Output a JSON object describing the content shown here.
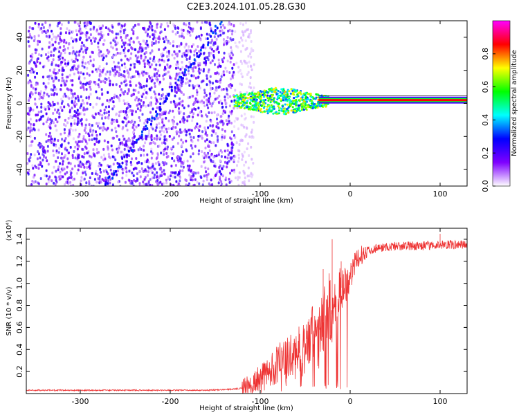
{
  "title": "C2E3.2024.101.05.28.G30",
  "chart_data": [
    {
      "type": "heatmap",
      "xlabel": "Height of straight line (km)",
      "ylabel": "Frequency (Hz)",
      "xlim": [
        -360,
        130
      ],
      "ylim": [
        -50,
        50
      ],
      "xticks": [
        "-300",
        "-200",
        "-100",
        "0",
        "100"
      ],
      "xtick_values": [
        -300,
        -200,
        -100,
        0,
        100
      ],
      "yticks": [
        "-40",
        "-20",
        "0",
        "20",
        "40"
      ],
      "ytick_values": [
        -40,
        -20,
        0,
        20,
        40
      ],
      "colorbar": {
        "label": "Normalized spectral amplitude",
        "range": [
          0,
          1
        ],
        "ticks": [
          "0.0",
          "0.2",
          "0.4",
          "0.6",
          "0.8"
        ],
        "tick_values": [
          0.0,
          0.2,
          0.4,
          0.6,
          0.8
        ],
        "colormap": "rainbow",
        "stops": [
          "#ffffff",
          "#7f00ff",
          "#0000ff",
          "#00ffff",
          "#00ff00",
          "#ffff00",
          "#ff0000",
          "#ff00ff"
        ]
      },
      "features": {
        "noise_region_x": [
          -360,
          -130
        ],
        "sparse_noise_x": [
          -130,
          -108
        ],
        "diagonal_feature": {
          "from": [
            -275,
            -50
          ],
          "to": [
            -145,
            50
          ]
        },
        "signal_line_frequency_hz": 2,
        "broadband_signal_x": [
          -130,
          -25
        ],
        "strong_line_x": [
          -35,
          130
        ]
      },
      "grid": false
    },
    {
      "type": "line",
      "xlabel": "Height of straight line (km)",
      "ylabel": "SNR (10 * v/v)",
      "y_multiplier": "(x10⁴)",
      "xlim": [
        -360,
        130
      ],
      "ylim": [
        0,
        1.5
      ],
      "xticks": [
        "-300",
        "-200",
        "-100",
        "0",
        "100"
      ],
      "xtick_values": [
        -300,
        -200,
        -100,
        0,
        100
      ],
      "yticks": [
        "0.2",
        "0.4",
        "0.6",
        "0.8",
        "1.0",
        "1.2",
        "1.4"
      ],
      "ytick_values": [
        0.2,
        0.4,
        0.6,
        0.8,
        1.0,
        1.2,
        1.4
      ],
      "line_color": "#ee3333",
      "series": [
        {
          "x": [
            -360,
            -300,
            -250,
            -200,
            -160,
            -130,
            -120,
            -110,
            -100,
            -90,
            -80,
            -70,
            -60,
            -50,
            -40,
            -35,
            -30,
            -25,
            -20,
            -15,
            -10,
            -5,
            0,
            5,
            10,
            20,
            30,
            40,
            60,
            80,
            100,
            130
          ],
          "values": [
            0.03,
            0.03,
            0.03,
            0.03,
            0.03,
            0.04,
            0.05,
            0.08,
            0.13,
            0.2,
            0.28,
            0.3,
            0.35,
            0.42,
            0.55,
            0.48,
            0.65,
            0.8,
            0.72,
            0.9,
            0.96,
            1.0,
            1.08,
            1.15,
            1.24,
            1.3,
            1.32,
            1.33,
            1.34,
            1.34,
            1.35,
            1.35
          ],
          "spikes": [
            [
              -20,
              1.4
            ],
            [
              -30,
              1.13
            ],
            [
              -10,
              1.2
            ],
            [
              100,
              1.45
            ]
          ]
        }
      ],
      "grid": false
    }
  ]
}
